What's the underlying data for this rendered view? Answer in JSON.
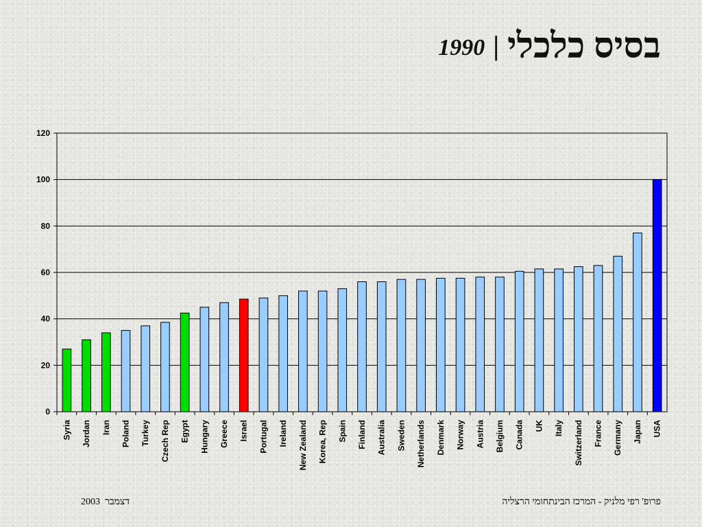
{
  "slide": {
    "title_main": "בסיס כלכלי",
    "title_sep": "|",
    "title_year": "1990",
    "footer_date_month": "דצמבר",
    "footer_date_year": "2003",
    "footer_author": "פרופ' רפי מלניק - המרכז הבינתחומי הרצליה"
  },
  "colors": {
    "default_bar": "#99ccff",
    "arab_neighbors": "#00dd00",
    "israel": "#ff0000",
    "usa": "#0000ff"
  },
  "chart_data": {
    "type": "bar",
    "title": "",
    "xlabel": "",
    "ylabel": "",
    "ylim": [
      0,
      120
    ],
    "yticks": [
      0,
      20,
      40,
      60,
      80,
      100,
      120
    ],
    "grid": true,
    "categories": [
      "Syria",
      "Jordan",
      "Iran",
      "Poland",
      "Turkey",
      "Czech Rep",
      "Egypt",
      "Hungary",
      "Greece",
      "Israel",
      "Portugal",
      "Ireland",
      "New Zealand",
      "Korea, Rep",
      "Spain",
      "Finland",
      "Australia",
      "Sweden",
      "Netherlands",
      "Denmark",
      "Norway",
      "Austria",
      "Belgium",
      "Canada",
      "UK",
      "Italy",
      "Switzerland",
      "France",
      "Germany",
      "Japan",
      "USA"
    ],
    "values": [
      27,
      31,
      34,
      35,
      37,
      38.5,
      42.5,
      45,
      47,
      48.5,
      49,
      50,
      52,
      52,
      53,
      56,
      56,
      57,
      57,
      57.5,
      57.5,
      58,
      58,
      60.5,
      61.5,
      61.5,
      62.5,
      63,
      67,
      77,
      100
    ],
    "bar_colors": [
      "#00dd00",
      "#00dd00",
      "#00dd00",
      "#99ccff",
      "#99ccff",
      "#99ccff",
      "#00dd00",
      "#99ccff",
      "#99ccff",
      "#ff0000",
      "#99ccff",
      "#99ccff",
      "#99ccff",
      "#99ccff",
      "#99ccff",
      "#99ccff",
      "#99ccff",
      "#99ccff",
      "#99ccff",
      "#99ccff",
      "#99ccff",
      "#99ccff",
      "#99ccff",
      "#99ccff",
      "#99ccff",
      "#99ccff",
      "#99ccff",
      "#99ccff",
      "#99ccff",
      "#99ccff",
      "#0000ff"
    ]
  }
}
